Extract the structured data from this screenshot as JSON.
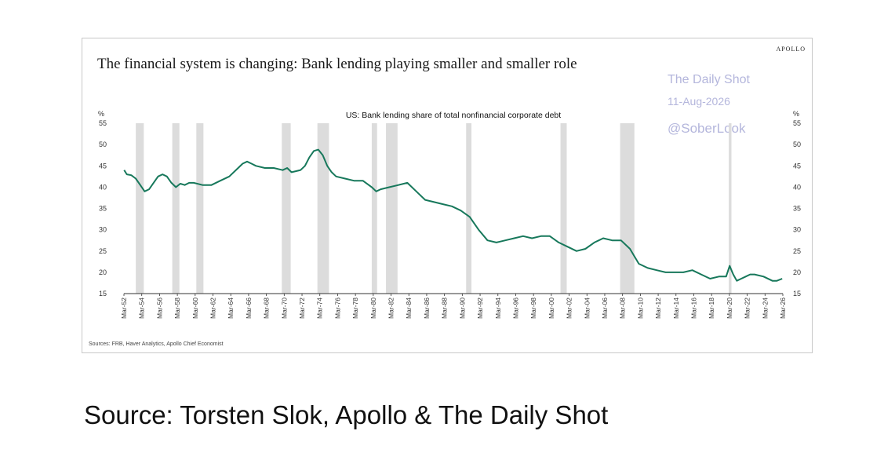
{
  "brand": "APOLLO",
  "title": "The financial system is changing: Bank lending playing smaller and smaller role",
  "watermark": {
    "line1": "The Daily Shot",
    "line2": "11-Aug-2026",
    "line3": "@SoberLook"
  },
  "sources": "Sources: FRB, Haver Analytics, Apollo Chief Economist",
  "caption": "Source: Torsten Slok, Apollo & The Daily Shot",
  "colors": {
    "line": "#17785b",
    "recession": "#dcdcdc",
    "axis": "#333333"
  },
  "chart_data": {
    "type": "line",
    "title": "US: Bank lending share of total nonfinancial corporate debt",
    "ylabel_left": "%",
    "ylabel_right": "%",
    "ylim": [
      15,
      55
    ],
    "yticks": [
      15,
      20,
      25,
      30,
      35,
      40,
      45,
      50,
      55
    ],
    "xlim": [
      1952.17,
      2026.17
    ],
    "xtick_labels": [
      "Mar-52",
      "Mar-54",
      "Mar-56",
      "Mar-58",
      "Mar-60",
      "Mar-62",
      "Mar-64",
      "Mar-66",
      "Mar-68",
      "Mar-70",
      "Mar-72",
      "Mar-74",
      "Mar-76",
      "Mar-78",
      "Mar-80",
      "Mar-82",
      "Mar-84",
      "Mar-86",
      "Mar-88",
      "Mar-90",
      "Mar-92",
      "Mar-94",
      "Mar-96",
      "Mar-98",
      "Mar-00",
      "Mar-02",
      "Mar-04",
      "Mar-06",
      "Mar-08",
      "Mar-10",
      "Mar-12",
      "Mar-14",
      "Mar-16",
      "Mar-18",
      "Mar-20",
      "Mar-22",
      "Mar-24",
      "Mar-26"
    ],
    "recessions": [
      [
        1953.5,
        1954.4
      ],
      [
        1957.6,
        1958.4
      ],
      [
        1960.3,
        1961.1
      ],
      [
        1969.9,
        1970.9
      ],
      [
        1973.9,
        1975.2
      ],
      [
        1980.0,
        1980.6
      ],
      [
        1981.6,
        1982.9
      ],
      [
        1990.6,
        1991.2
      ],
      [
        2001.2,
        2001.9
      ],
      [
        2007.9,
        2009.5
      ],
      [
        2020.1,
        2020.4
      ]
    ],
    "series": [
      {
        "x": [
          1952.2,
          1952.5,
          1953.0,
          1953.5,
          1954.0,
          1954.5,
          1955.0,
          1955.5,
          1956.0,
          1956.5,
          1957.0,
          1957.5,
          1958.0,
          1958.5,
          1959.0,
          1959.5,
          1960.0,
          1961.0,
          1962.0,
          1963.0,
          1964.0,
          1965.0,
          1965.5,
          1966.0,
          1966.5,
          1967.0,
          1968.0,
          1969.0,
          1970.0,
          1970.5,
          1971.0,
          1972.0,
          1972.5,
          1973.0,
          1973.5,
          1974.0,
          1974.5,
          1975.0,
          1975.5,
          1976.0,
          1977.0,
          1978.0,
          1979.0,
          1980.0,
          1980.5,
          1981.0,
          1982.0,
          1983.0,
          1984.0,
          1985.0,
          1986.0,
          1987.0,
          1988.0,
          1989.0,
          1990.0,
          1991.0,
          1992.0,
          1993.0,
          1994.0,
          1995.0,
          1996.0,
          1997.0,
          1998.0,
          1999.0,
          2000.0,
          2001.0,
          2002.0,
          2003.0,
          2004.0,
          2005.0,
          2006.0,
          2007.0,
          2008.0,
          2009.0,
          2010.0,
          2011.0,
          2012.0,
          2013.0,
          2014.0,
          2015.0,
          2016.0,
          2017.0,
          2018.0,
          2019.0,
          2019.8,
          2020.2,
          2020.6,
          2021.0,
          2021.5,
          2022.0,
          2022.5,
          2023.0,
          2024.0,
          2025.0,
          2025.5,
          2026.1
        ],
        "y": [
          44.0,
          43.0,
          42.8,
          42.0,
          40.5,
          39.0,
          39.5,
          41.0,
          42.5,
          43.0,
          42.5,
          41.0,
          40.0,
          40.8,
          40.5,
          41.0,
          41.0,
          40.5,
          40.5,
          41.5,
          42.5,
          44.5,
          45.5,
          46.0,
          45.5,
          45.0,
          44.5,
          44.5,
          44.0,
          44.5,
          43.5,
          44.0,
          45.0,
          47.0,
          48.5,
          48.8,
          47.5,
          45.0,
          43.5,
          42.5,
          42.0,
          41.5,
          41.5,
          40.0,
          39.0,
          39.5,
          40.0,
          40.5,
          41.0,
          39.0,
          37.0,
          36.5,
          36.0,
          35.5,
          34.5,
          33.0,
          30.0,
          27.5,
          27.0,
          27.5,
          28.0,
          28.5,
          28.0,
          28.5,
          28.5,
          27.0,
          26.0,
          25.0,
          25.5,
          27.0,
          28.0,
          27.5,
          27.5,
          25.5,
          22.0,
          21.0,
          20.5,
          20.0,
          20.0,
          20.0,
          20.5,
          19.5,
          18.5,
          19.0,
          19.0,
          21.5,
          19.5,
          18.0,
          18.5,
          19.0,
          19.5,
          19.5,
          19.0,
          18.0,
          18.0,
          18.5
        ]
      }
    ]
  }
}
